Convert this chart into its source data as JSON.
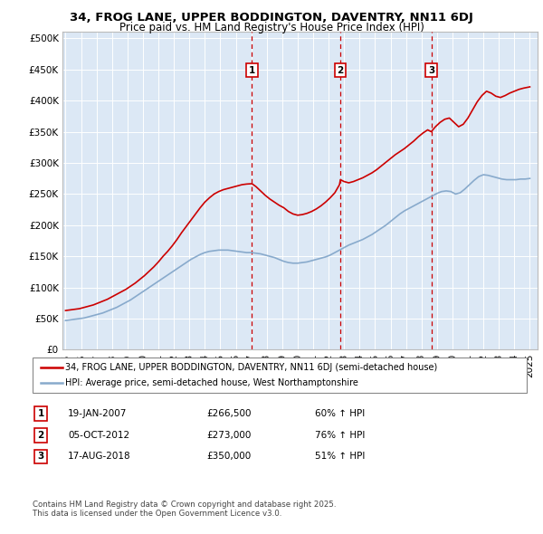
{
  "title1": "34, FROG LANE, UPPER BODDINGTON, DAVENTRY, NN11 6DJ",
  "title2": "Price paid vs. HM Land Registry's House Price Index (HPI)",
  "bg_color": "#ffffff",
  "plot_bg_color": "#dce8f5",
  "red_color": "#cc0000",
  "blue_color": "#88aacc",
  "legend_line1": "34, FROG LANE, UPPER BODDINGTON, DAVENTRY, NN11 6DJ (semi-detached house)",
  "legend_line2": "HPI: Average price, semi-detached house, West Northamptonshire",
  "footer1": "Contains HM Land Registry data © Crown copyright and database right 2025.",
  "footer2": "This data is licensed under the Open Government Licence v3.0.",
  "transactions": [
    {
      "num": 1,
      "date": "19-JAN-2007",
      "price": "£266,500",
      "hpi": "60% ↑ HPI",
      "year": 2007.05
    },
    {
      "num": 2,
      "date": "05-OCT-2012",
      "price": "£273,000",
      "hpi": "76% ↑ HPI",
      "year": 2012.76
    },
    {
      "num": 3,
      "date": "17-AUG-2018",
      "price": "£350,000",
      "hpi": "51% ↑ HPI",
      "year": 2018.63
    }
  ],
  "ylim": [
    0,
    510000
  ],
  "yticks": [
    0,
    50000,
    100000,
    150000,
    200000,
    250000,
    300000,
    350000,
    400000,
    450000,
    500000
  ],
  "ytick_labels": [
    "£0",
    "£50K",
    "£100K",
    "£150K",
    "£200K",
    "£250K",
    "£300K",
    "£350K",
    "£400K",
    "£450K",
    "£500K"
  ],
  "xlim": [
    1994.8,
    2025.5
  ],
  "xticks": [
    1995,
    1996,
    1997,
    1998,
    1999,
    2000,
    2001,
    2002,
    2003,
    2004,
    2005,
    2006,
    2007,
    2008,
    2009,
    2010,
    2011,
    2012,
    2013,
    2014,
    2015,
    2016,
    2017,
    2018,
    2019,
    2020,
    2021,
    2022,
    2023,
    2024,
    2025
  ],
  "red_x": [
    1995.0,
    1995.3,
    1995.6,
    1995.9,
    1996.2,
    1996.5,
    1996.8,
    1997.1,
    1997.4,
    1997.7,
    1998.0,
    1998.3,
    1998.6,
    1998.9,
    1999.2,
    1999.5,
    1999.8,
    2000.1,
    2000.4,
    2000.7,
    2001.0,
    2001.3,
    2001.6,
    2001.9,
    2002.2,
    2002.5,
    2002.8,
    2003.1,
    2003.4,
    2003.7,
    2004.0,
    2004.3,
    2004.6,
    2004.9,
    2005.2,
    2005.5,
    2005.8,
    2006.1,
    2006.4,
    2006.7,
    2007.0,
    2007.05,
    2007.3,
    2007.6,
    2007.9,
    2008.2,
    2008.5,
    2008.8,
    2009.1,
    2009.4,
    2009.7,
    2010.0,
    2010.3,
    2010.6,
    2010.9,
    2011.2,
    2011.5,
    2011.8,
    2012.1,
    2012.4,
    2012.7,
    2012.76,
    2013.0,
    2013.3,
    2013.6,
    2013.9,
    2014.2,
    2014.5,
    2014.8,
    2015.1,
    2015.4,
    2015.7,
    2016.0,
    2016.3,
    2016.6,
    2016.9,
    2017.2,
    2017.5,
    2017.8,
    2018.1,
    2018.4,
    2018.63,
    2018.9,
    2019.2,
    2019.5,
    2019.8,
    2020.1,
    2020.4,
    2020.7,
    2021.0,
    2021.3,
    2021.6,
    2021.9,
    2022.2,
    2022.5,
    2022.8,
    2023.1,
    2023.4,
    2023.7,
    2024.0,
    2024.3,
    2024.6,
    2025.0
  ],
  "red_y": [
    63000,
    64000,
    65000,
    66000,
    68000,
    70000,
    72000,
    75000,
    78000,
    81000,
    85000,
    89000,
    93000,
    97000,
    102000,
    107000,
    113000,
    119000,
    126000,
    133000,
    141000,
    150000,
    158000,
    167000,
    177000,
    188000,
    198000,
    208000,
    218000,
    228000,
    237000,
    244000,
    250000,
    254000,
    257000,
    259000,
    261000,
    263000,
    265000,
    266000,
    266500,
    266500,
    262000,
    255000,
    248000,
    242000,
    237000,
    232000,
    228000,
    222000,
    218000,
    216000,
    217000,
    219000,
    222000,
    226000,
    231000,
    237000,
    244000,
    252000,
    265000,
    273000,
    270000,
    268000,
    270000,
    273000,
    276000,
    280000,
    284000,
    289000,
    295000,
    301000,
    307000,
    313000,
    318000,
    323000,
    329000,
    335000,
    342000,
    348000,
    353000,
    350000,
    358000,
    365000,
    370000,
    372000,
    365000,
    358000,
    362000,
    372000,
    385000,
    398000,
    408000,
    415000,
    412000,
    407000,
    405000,
    408000,
    412000,
    415000,
    418000,
    420000,
    422000
  ],
  "blue_x": [
    1995.0,
    1995.3,
    1995.6,
    1995.9,
    1996.2,
    1996.5,
    1996.8,
    1997.1,
    1997.4,
    1997.7,
    1998.0,
    1998.3,
    1998.6,
    1998.9,
    1999.2,
    1999.5,
    1999.8,
    2000.1,
    2000.4,
    2000.7,
    2001.0,
    2001.3,
    2001.6,
    2001.9,
    2002.2,
    2002.5,
    2002.8,
    2003.1,
    2003.4,
    2003.7,
    2004.0,
    2004.3,
    2004.6,
    2004.9,
    2005.2,
    2005.5,
    2005.8,
    2006.1,
    2006.4,
    2006.7,
    2007.0,
    2007.3,
    2007.6,
    2007.9,
    2008.2,
    2008.5,
    2008.8,
    2009.1,
    2009.4,
    2009.7,
    2010.0,
    2010.3,
    2010.6,
    2010.9,
    2011.2,
    2011.5,
    2011.8,
    2012.1,
    2012.4,
    2012.7,
    2013.0,
    2013.3,
    2013.6,
    2013.9,
    2014.2,
    2014.5,
    2014.8,
    2015.1,
    2015.4,
    2015.7,
    2016.0,
    2016.3,
    2016.6,
    2016.9,
    2017.2,
    2017.5,
    2017.8,
    2018.1,
    2018.4,
    2018.7,
    2019.0,
    2019.3,
    2019.6,
    2019.9,
    2020.2,
    2020.5,
    2020.8,
    2021.1,
    2021.4,
    2021.7,
    2022.0,
    2022.3,
    2022.6,
    2022.9,
    2023.2,
    2023.5,
    2023.8,
    2024.1,
    2024.4,
    2024.7,
    2025.0
  ],
  "blue_y": [
    47000,
    48000,
    49000,
    50000,
    51000,
    53000,
    55000,
    57000,
    59000,
    62000,
    65000,
    68000,
    72000,
    76000,
    80000,
    85000,
    90000,
    95000,
    100000,
    105000,
    110000,
    115000,
    120000,
    125000,
    130000,
    135000,
    140000,
    145000,
    149000,
    153000,
    156000,
    158000,
    159000,
    160000,
    160000,
    160000,
    159000,
    158000,
    157000,
    156000,
    156000,
    155000,
    154000,
    152000,
    150000,
    148000,
    145000,
    142000,
    140000,
    139000,
    139000,
    140000,
    141000,
    143000,
    145000,
    147000,
    149000,
    152000,
    156000,
    160000,
    164000,
    168000,
    171000,
    174000,
    177000,
    181000,
    185000,
    190000,
    195000,
    200000,
    206000,
    212000,
    218000,
    223000,
    227000,
    231000,
    235000,
    239000,
    243000,
    247000,
    251000,
    254000,
    255000,
    254000,
    250000,
    252000,
    258000,
    265000,
    272000,
    278000,
    281000,
    280000,
    278000,
    276000,
    274000,
    273000,
    273000,
    273000,
    274000,
    274000,
    275000
  ]
}
